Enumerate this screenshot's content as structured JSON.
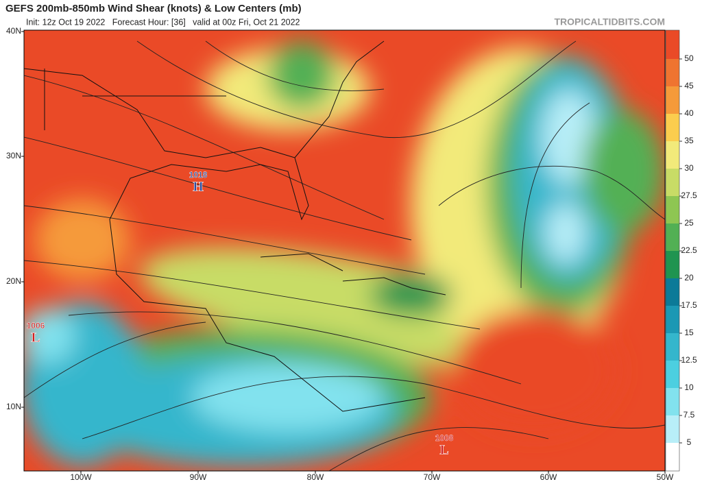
{
  "header": {
    "title": "GEFS 200mb-850mb Wind Shear (knots) & Low Centers (mb)",
    "subtitle": "Init: 12z Oct 19 2022   Forecast Hour: [36]   valid at 00z Fri, Oct 21 2022",
    "site": "TROPICALTIDBITS.COM"
  },
  "map": {
    "lat_labels": [
      "40N",
      "30N",
      "20N",
      "10N"
    ],
    "lon_labels": [
      "100W",
      "90W",
      "80W",
      "70W",
      "60W",
      "50W"
    ],
    "centers": [
      {
        "pressure": 1018,
        "symbol": "H",
        "color": "#2a4a9c"
      },
      {
        "pressure": 1006,
        "symbol": "L",
        "color": "#d02020"
      },
      {
        "pressure": 1008,
        "symbol": "L",
        "color": "#d02020"
      }
    ]
  },
  "colorbar": {
    "levels": [
      5,
      7.5,
      10,
      12.5,
      15,
      17.5,
      20,
      22.5,
      25,
      27.5,
      30,
      35,
      40,
      45,
      50
    ],
    "colors": [
      "#ffffff",
      "#b8eef8",
      "#82e2ee",
      "#4ccfe0",
      "#34b6cc",
      "#1c98b4",
      "#0c7a98",
      "#1f9450",
      "#52b054",
      "#8ec652",
      "#c8dc66",
      "#f2ea7a",
      "#fbcd4e",
      "#f59a3a",
      "#ef7430",
      "#ea4a27"
    ]
  }
}
